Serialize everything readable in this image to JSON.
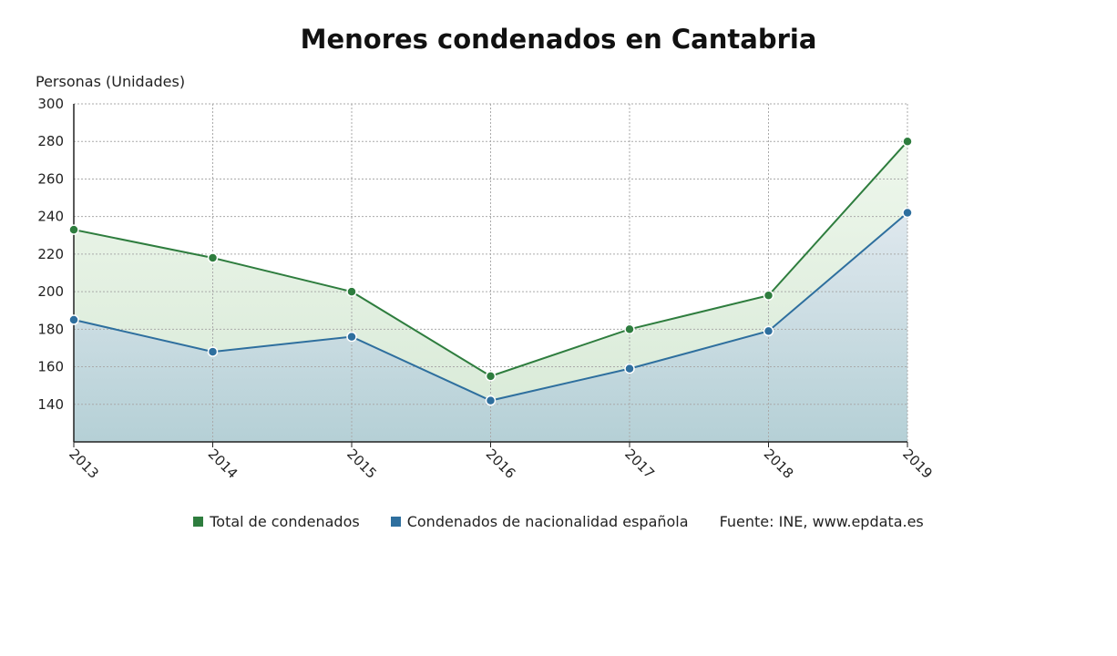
{
  "chart_data": {
    "type": "line",
    "title": "Menores condenados en Cantabria",
    "ylabel": "Personas (Unidades)",
    "xlabel": "",
    "categories": [
      "2013",
      "2014",
      "2015",
      "2016",
      "2017",
      "2018",
      "2019"
    ],
    "series": [
      {
        "name": "Total de condenados",
        "color": "#2e7d3e",
        "values": [
          233,
          218,
          200,
          155,
          180,
          198,
          280
        ]
      },
      {
        "name": "Condenados de nacionalidad española",
        "color": "#2e6f9e",
        "values": [
          185,
          168,
          176,
          142,
          159,
          179,
          242
        ]
      }
    ],
    "ylim": [
      120,
      300
    ],
    "yticks": [
      140,
      160,
      180,
      200,
      220,
      240,
      260,
      280,
      300
    ],
    "grid": true,
    "area_fill": true,
    "legend": "bottom",
    "source": "Fuente: INE, www.epdata.es"
  }
}
